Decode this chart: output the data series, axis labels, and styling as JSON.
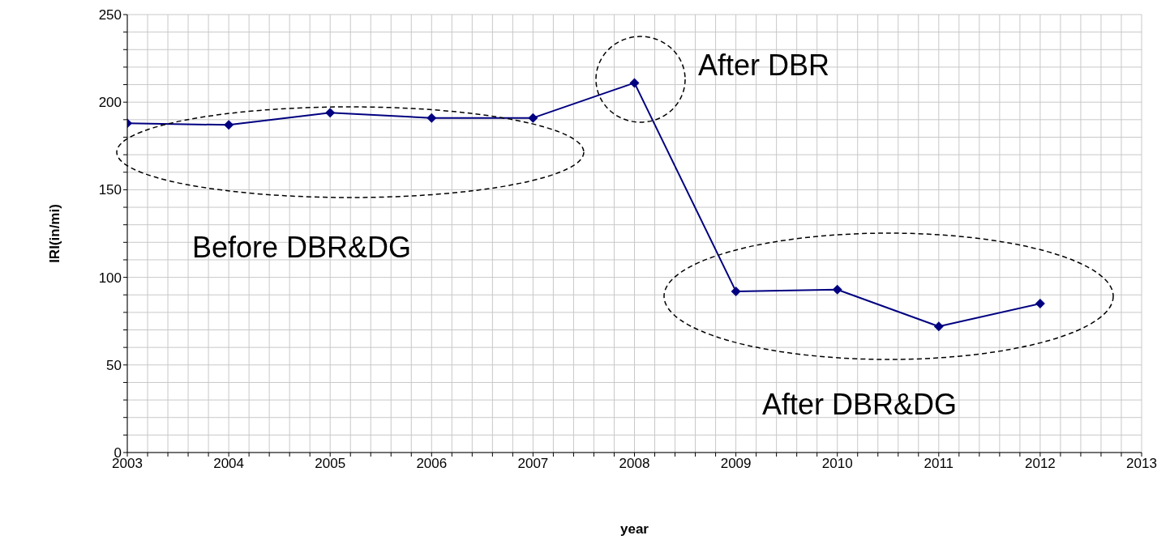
{
  "chart_data": {
    "type": "line",
    "xlabel": "year",
    "ylabel": "IRI(in/mi)",
    "x": [
      2003,
      2004,
      2005,
      2006,
      2007,
      2008,
      2009,
      2010,
      2011,
      2012
    ],
    "series": [
      {
        "color": "#000080",
        "values": [
          188,
          187,
          194,
          191,
          191,
          211,
          92,
          93,
          72,
          85
        ]
      }
    ],
    "xlim": [
      2003,
      2013
    ],
    "xticks": [
      2003,
      {
        "value": 2003.2,
        "label": null
      },
      {
        "value": 2003.4,
        "label": null
      },
      {
        "value": 2003.6,
        "label": null
      },
      {
        "value": 2003.8,
        "label": null
      },
      2004,
      {
        "value": 2004.2,
        "label": null
      },
      {
        "value": 2004.4,
        "label": null
      },
      {
        "value": 2004.6,
        "label": null
      },
      {
        "value": 2004.8,
        "label": null
      },
      2005,
      {
        "value": 2005.2,
        "label": null
      },
      {
        "value": 2005.4,
        "label": null
      },
      {
        "value": 2005.6,
        "label": null
      },
      {
        "value": 2005.8,
        "label": null
      },
      2006,
      {
        "value": 2006.2,
        "label": null
      },
      {
        "value": 2006.4,
        "label": null
      },
      {
        "value": 2006.6,
        "label": null
      },
      {
        "value": 2006.8,
        "label": null
      },
      2007,
      {
        "value": 2007.2,
        "label": null
      },
      {
        "value": 2007.4,
        "label": null
      },
      {
        "value": 2007.6,
        "label": null
      },
      {
        "value": 2007.8,
        "label": null
      },
      2008,
      {
        "value": 2008.2,
        "label": null
      },
      {
        "value": 2008.4,
        "label": null
      },
      {
        "value": 2008.6,
        "label": null
      },
      {
        "value": 2008.8,
        "label": null
      },
      2009,
      {
        "value": 2009.2,
        "label": null
      },
      {
        "value": 2009.4,
        "label": null
      },
      {
        "value": 2009.6,
        "label": null
      },
      {
        "value": 2009.8,
        "label": null
      },
      2010,
      {
        "value": 2010.2,
        "label": null
      },
      {
        "value": 2010.4,
        "label": null
      },
      {
        "value": 2010.6,
        "label": null
      },
      {
        "value": 2010.8,
        "label": null
      },
      2011,
      {
        "value": 2011.2,
        "label": null
      },
      {
        "value": 2011.4,
        "label": null
      },
      {
        "value": 2011.6,
        "label": null
      },
      {
        "value": 2011.8,
        "label": null
      },
      2012,
      {
        "value": 2012.2,
        "label": null
      },
      {
        "value": 2012.4,
        "label": null
      },
      {
        "value": 2012.6,
        "label": null
      },
      {
        "value": 2012.8,
        "label": null
      },
      2013
    ],
    "ylim": [
      0,
      250
    ],
    "yticks": [
      0,
      {
        "value": 10,
        "label": null
      },
      {
        "value": 20,
        "label": null
      },
      {
        "value": 30,
        "label": null
      },
      {
        "value": 40,
        "label": null
      },
      50,
      {
        "value": 60,
        "label": null
      },
      {
        "value": 70,
        "label": null
      },
      {
        "value": 80,
        "label": null
      },
      {
        "value": 90,
        "label": null
      },
      100,
      {
        "value": 110,
        "label": null
      },
      {
        "value": 120,
        "label": null
      },
      {
        "value": 130,
        "label": null
      },
      {
        "value": 140,
        "label": null
      },
      150,
      {
        "value": 160,
        "label": null
      },
      {
        "value": 170,
        "label": null
      },
      {
        "value": 180,
        "label": null
      },
      {
        "value": 190,
        "label": null
      },
      200,
      {
        "value": 210,
        "label": null
      },
      {
        "value": 220,
        "label": null
      },
      {
        "value": 230,
        "label": null
      },
      {
        "value": 240,
        "label": null
      },
      250
    ],
    "grid": true,
    "marker": "diamond",
    "line_style": "solid",
    "annotations": [
      "Before DBR&DG",
      "After DBR",
      "After DBR&DG"
    ]
  }
}
